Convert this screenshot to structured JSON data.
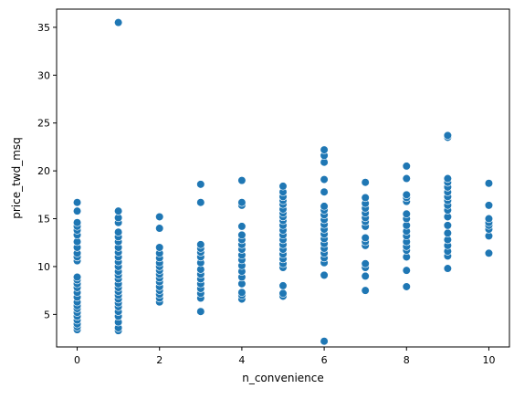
{
  "chart_data": {
    "type": "scatter",
    "title": "",
    "xlabel": "n_convenience",
    "ylabel": "price_twd_msq",
    "xlim": [
      -0.5,
      10.5
    ],
    "ylim": [
      1.6,
      36.9
    ],
    "xticks": [
      0,
      2,
      4,
      6,
      8,
      10
    ],
    "yticks": [
      5,
      10,
      15,
      20,
      25,
      30,
      35
    ],
    "grid": false,
    "legend": "none",
    "marker_color": "#1f77b4",
    "marker_edge": "#ffffff",
    "points": [
      [
        0,
        3.4
      ],
      [
        0,
        3.7
      ],
      [
        0,
        4.0
      ],
      [
        0,
        4.4
      ],
      [
        0,
        4.8
      ],
      [
        0,
        5.2
      ],
      [
        0,
        5.6
      ],
      [
        0,
        5.9
      ],
      [
        0,
        6.3
      ],
      [
        0,
        6.8
      ],
      [
        0,
        7.3
      ],
      [
        0,
        7.8
      ],
      [
        0,
        8.2
      ],
      [
        0,
        8.6
      ],
      [
        0,
        8.9
      ],
      [
        0,
        10.6
      ],
      [
        0,
        11.0
      ],
      [
        0,
        11.4
      ],
      [
        0,
        12.0
      ],
      [
        0,
        12.6
      ],
      [
        0,
        13.3
      ],
      [
        0,
        13.8
      ],
      [
        0,
        14.2
      ],
      [
        0,
        14.6
      ],
      [
        0,
        15.8
      ],
      [
        0,
        16.7
      ],
      [
        1,
        3.3
      ],
      [
        1,
        3.6
      ],
      [
        1,
        4.2
      ],
      [
        1,
        4.8
      ],
      [
        1,
        5.3
      ],
      [
        1,
        5.8
      ],
      [
        1,
        6.2
      ],
      [
        1,
        6.6
      ],
      [
        1,
        7.0
      ],
      [
        1,
        7.4
      ],
      [
        1,
        7.8
      ],
      [
        1,
        8.2
      ],
      [
        1,
        8.7
      ],
      [
        1,
        9.1
      ],
      [
        1,
        9.5
      ],
      [
        1,
        10.0
      ],
      [
        1,
        10.5
      ],
      [
        1,
        11.0
      ],
      [
        1,
        11.5
      ],
      [
        1,
        12.0
      ],
      [
        1,
        12.6
      ],
      [
        1,
        13.1
      ],
      [
        1,
        13.6
      ],
      [
        1,
        14.6
      ],
      [
        1,
        15.1
      ],
      [
        1,
        15.8
      ],
      [
        1,
        35.5
      ],
      [
        2,
        6.3
      ],
      [
        2,
        6.7
      ],
      [
        2,
        7.1
      ],
      [
        2,
        7.5
      ],
      [
        2,
        7.9
      ],
      [
        2,
        8.4
      ],
      [
        2,
        8.8
      ],
      [
        2,
        9.2
      ],
      [
        2,
        9.6
      ],
      [
        2,
        10.0
      ],
      [
        2,
        10.4
      ],
      [
        2,
        10.9
      ],
      [
        2,
        11.4
      ],
      [
        2,
        12.0
      ],
      [
        2,
        14.0
      ],
      [
        2,
        15.2
      ],
      [
        3,
        5.3
      ],
      [
        3,
        6.7
      ],
      [
        3,
        7.2
      ],
      [
        3,
        7.7
      ],
      [
        3,
        8.2
      ],
      [
        3,
        8.7
      ],
      [
        3,
        9.2
      ],
      [
        3,
        9.7
      ],
      [
        3,
        10.4
      ],
      [
        3,
        11.0
      ],
      [
        3,
        11.5
      ],
      [
        3,
        11.9
      ],
      [
        3,
        12.3
      ],
      [
        3,
        16.7
      ],
      [
        3,
        18.6
      ],
      [
        4,
        6.6
      ],
      [
        4,
        7.0
      ],
      [
        4,
        7.3
      ],
      [
        4,
        8.2
      ],
      [
        4,
        8.9
      ],
      [
        4,
        9.5
      ],
      [
        4,
        10.1
      ],
      [
        4,
        10.7
      ],
      [
        4,
        11.2
      ],
      [
        4,
        11.8
      ],
      [
        4,
        12.3
      ],
      [
        4,
        12.8
      ],
      [
        4,
        13.3
      ],
      [
        4,
        14.2
      ],
      [
        4,
        16.4
      ],
      [
        4,
        16.7
      ],
      [
        4,
        19.0
      ],
      [
        5,
        6.9
      ],
      [
        5,
        7.2
      ],
      [
        5,
        8.0
      ],
      [
        5,
        9.9
      ],
      [
        5,
        10.3
      ],
      [
        5,
        10.8
      ],
      [
        5,
        11.3
      ],
      [
        5,
        11.8
      ],
      [
        5,
        12.3
      ],
      [
        5,
        12.8
      ],
      [
        5,
        13.3
      ],
      [
        5,
        13.8
      ],
      [
        5,
        14.3
      ],
      [
        5,
        14.8
      ],
      [
        5,
        15.2
      ],
      [
        5,
        15.6
      ],
      [
        5,
        16.0
      ],
      [
        5,
        16.5
      ],
      [
        5,
        16.9
      ],
      [
        5,
        17.3
      ],
      [
        5,
        17.8
      ],
      [
        5,
        18.4
      ],
      [
        6,
        2.2
      ],
      [
        6,
        9.1
      ],
      [
        6,
        10.4
      ],
      [
        6,
        10.9
      ],
      [
        6,
        11.4
      ],
      [
        6,
        11.9
      ],
      [
        6,
        12.4
      ],
      [
        6,
        12.9
      ],
      [
        6,
        13.4
      ],
      [
        6,
        13.9
      ],
      [
        6,
        14.4
      ],
      [
        6,
        14.9
      ],
      [
        6,
        15.4
      ],
      [
        6,
        15.9
      ],
      [
        6,
        16.3
      ],
      [
        6,
        17.8
      ],
      [
        6,
        19.1
      ],
      [
        6,
        20.9
      ],
      [
        6,
        21.6
      ],
      [
        6,
        22.2
      ],
      [
        7,
        7.5
      ],
      [
        7,
        9.0
      ],
      [
        7,
        9.9
      ],
      [
        7,
        10.3
      ],
      [
        7,
        12.2
      ],
      [
        7,
        12.6
      ],
      [
        7,
        13.0
      ],
      [
        7,
        14.2
      ],
      [
        7,
        14.7
      ],
      [
        7,
        15.1
      ],
      [
        7,
        15.6
      ],
      [
        7,
        16.1
      ],
      [
        7,
        16.6
      ],
      [
        7,
        17.2
      ],
      [
        7,
        18.8
      ],
      [
        8,
        7.9
      ],
      [
        8,
        9.6
      ],
      [
        8,
        11.0
      ],
      [
        8,
        11.7
      ],
      [
        8,
        12.1
      ],
      [
        8,
        12.6
      ],
      [
        8,
        13.2
      ],
      [
        8,
        13.7
      ],
      [
        8,
        14.3
      ],
      [
        8,
        15.0
      ],
      [
        8,
        15.5
      ],
      [
        8,
        16.8
      ],
      [
        8,
        17.2
      ],
      [
        8,
        17.5
      ],
      [
        8,
        19.2
      ],
      [
        8,
        20.5
      ],
      [
        9,
        9.8
      ],
      [
        9,
        11.1
      ],
      [
        9,
        11.6
      ],
      [
        9,
        12.2
      ],
      [
        9,
        12.8
      ],
      [
        9,
        13.5
      ],
      [
        9,
        14.3
      ],
      [
        9,
        15.2
      ],
      [
        9,
        15.9
      ],
      [
        9,
        16.4
      ],
      [
        9,
        16.9
      ],
      [
        9,
        17.3
      ],
      [
        9,
        17.8
      ],
      [
        9,
        18.3
      ],
      [
        9,
        18.8
      ],
      [
        9,
        19.2
      ],
      [
        9,
        23.5
      ],
      [
        9,
        23.7
      ],
      [
        10,
        11.4
      ],
      [
        10,
        13.2
      ],
      [
        10,
        13.9
      ],
      [
        10,
        14.3
      ],
      [
        10,
        14.6
      ],
      [
        10,
        15.0
      ],
      [
        10,
        16.4
      ],
      [
        10,
        18.7
      ]
    ]
  }
}
